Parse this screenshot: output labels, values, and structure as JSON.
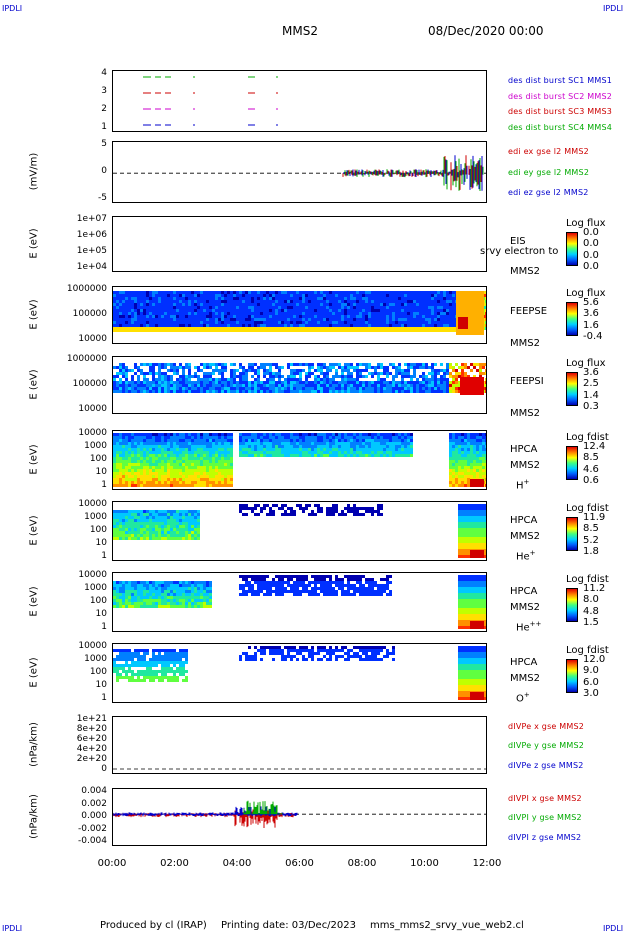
{
  "corners": {
    "top_left": "IPDLI",
    "top_right": "IPDLI",
    "bottom_left": "IPDLI",
    "bottom_right": "IPDLI"
  },
  "header": {
    "spacecraft": "MMS2",
    "date": "08/Dec/2020 00:00"
  },
  "footer": {
    "produced": "Produced by cl (IRAP)",
    "printing": "Printing date: 03/Dec/2023",
    "script": "mms_mms2_srvy_vue_web2.cl"
  },
  "chart_data": {
    "type": "multi-panel time series",
    "x_ticks": [
      "00:00",
      "02:00",
      "04:00",
      "06:00",
      "08:00",
      "10:00",
      "12:00"
    ],
    "panels": [
      {
        "id": "burst",
        "y_ticks": [
          "4",
          "3",
          "2",
          "1"
        ],
        "ylabel": "",
        "legend": [
          {
            "text": "des dist burst SC1 MMS1",
            "color": "#0000cc"
          },
          {
            "text": "des dist burst SC2 MMS2",
            "color": "#cc00cc"
          },
          {
            "text": "des dist burst SC3 MMS3",
            "color": "#cc0000"
          },
          {
            "text": "des dist burst SC4 MMS4",
            "color": "#00aa00"
          }
        ]
      },
      {
        "id": "edi",
        "y_ticks": [
          "5",
          "0",
          "-5"
        ],
        "ylabel": "(mV/m)",
        "legend": [
          {
            "text": "edi ex gse l2 MMS2",
            "color": "#cc0000"
          },
          {
            "text": "edi ey gse l2 MMS2",
            "color": "#00aa00"
          },
          {
            "text": "edi ez gse l2 MMS2",
            "color": "#0000cc"
          }
        ]
      },
      {
        "id": "eis",
        "y_ticks": [
          "1e+07",
          "1e+06",
          "1e+05",
          "1e+04"
        ],
        "ylabel": "E (eV)",
        "name1": "EIS",
        "name2": "MMS2",
        "overlay": "srvy electron to",
        "cb_title": "Log flux",
        "cb_values": [
          "0.0",
          "0.0",
          "0.0",
          "0.0"
        ]
      },
      {
        "id": "feepse",
        "y_ticks": [
          "1000000",
          "100000",
          "10000"
        ],
        "ylabel": "E (eV)",
        "name1": "FEEPSE",
        "name2": "MMS2",
        "cb_title": "Log flux",
        "cb_values": [
          "5.6",
          "3.6",
          "1.6",
          "-0.4"
        ]
      },
      {
        "id": "feepsi",
        "y_ticks": [
          "1000000",
          "100000",
          "10000"
        ],
        "ylabel": "E (eV)",
        "name1": "FEEPSI",
        "name2": "MMS2",
        "cb_title": "Log flux",
        "cb_values": [
          "3.6",
          "2.5",
          "1.4",
          "0.3"
        ]
      },
      {
        "id": "hpca_h",
        "y_ticks": [
          "10000",
          "1000",
          "100",
          "10",
          "1"
        ],
        "ylabel": "E (eV)",
        "name1": "HPCA",
        "name2": "MMS2",
        "species": "H",
        "charge": "+",
        "cb_title": "Log fdist",
        "cb_values": [
          "12.4",
          "8.5",
          "4.6",
          "0.6"
        ]
      },
      {
        "id": "hpca_he",
        "y_ticks": [
          "10000",
          "1000",
          "100",
          "10",
          "1"
        ],
        "ylabel": "E (eV)",
        "name1": "HPCA",
        "name2": "MMS2",
        "species": "He",
        "charge": "+",
        "cb_title": "Log fdist",
        "cb_values": [
          "11.9",
          "8.5",
          "5.2",
          "1.8"
        ]
      },
      {
        "id": "hpca_hepp",
        "y_ticks": [
          "10000",
          "1000",
          "100",
          "10",
          "1"
        ],
        "ylabel": "E (eV)",
        "name1": "HPCA",
        "name2": "MMS2",
        "species": "He",
        "charge": "++",
        "cb_title": "Log fdist",
        "cb_values": [
          "11.2",
          "8.0",
          "4.8",
          "1.5"
        ]
      },
      {
        "id": "hpca_o",
        "y_ticks": [
          "10000",
          "1000",
          "100",
          "10",
          "1"
        ],
        "ylabel": "E (eV)",
        "name1": "HPCA",
        "name2": "MMS2",
        "species": "O",
        "charge": "+",
        "cb_title": "Log fdist",
        "cb_values": [
          "12.0",
          "9.0",
          "6.0",
          "3.0"
        ]
      },
      {
        "id": "divpe",
        "y_ticks": [
          "1e+21",
          "8e+20",
          "6e+20",
          "4e+20",
          "2e+20",
          "0"
        ],
        "ylabel": "(nPa/km)",
        "legend": [
          {
            "text": "dIVPe x gse MMS2",
            "color": "#cc0000"
          },
          {
            "text": "dIVPe y gse MMS2",
            "color": "#00aa00"
          },
          {
            "text": "dIVPe z gse MMS2",
            "color": "#0000cc"
          }
        ]
      },
      {
        "id": "divpi",
        "y_ticks": [
          "0.004",
          "0.002",
          "0.000",
          "-0.002",
          "-0.004"
        ],
        "ylabel": "(nPa/km)",
        "legend": [
          {
            "text": "dIVPI x gse MMS2",
            "color": "#cc0000"
          },
          {
            "text": "dIVPI y gse MMS2",
            "color": "#00aa00"
          },
          {
            "text": "dIVPI z gse MMS2",
            "color": "#0000cc"
          }
        ]
      }
    ]
  }
}
